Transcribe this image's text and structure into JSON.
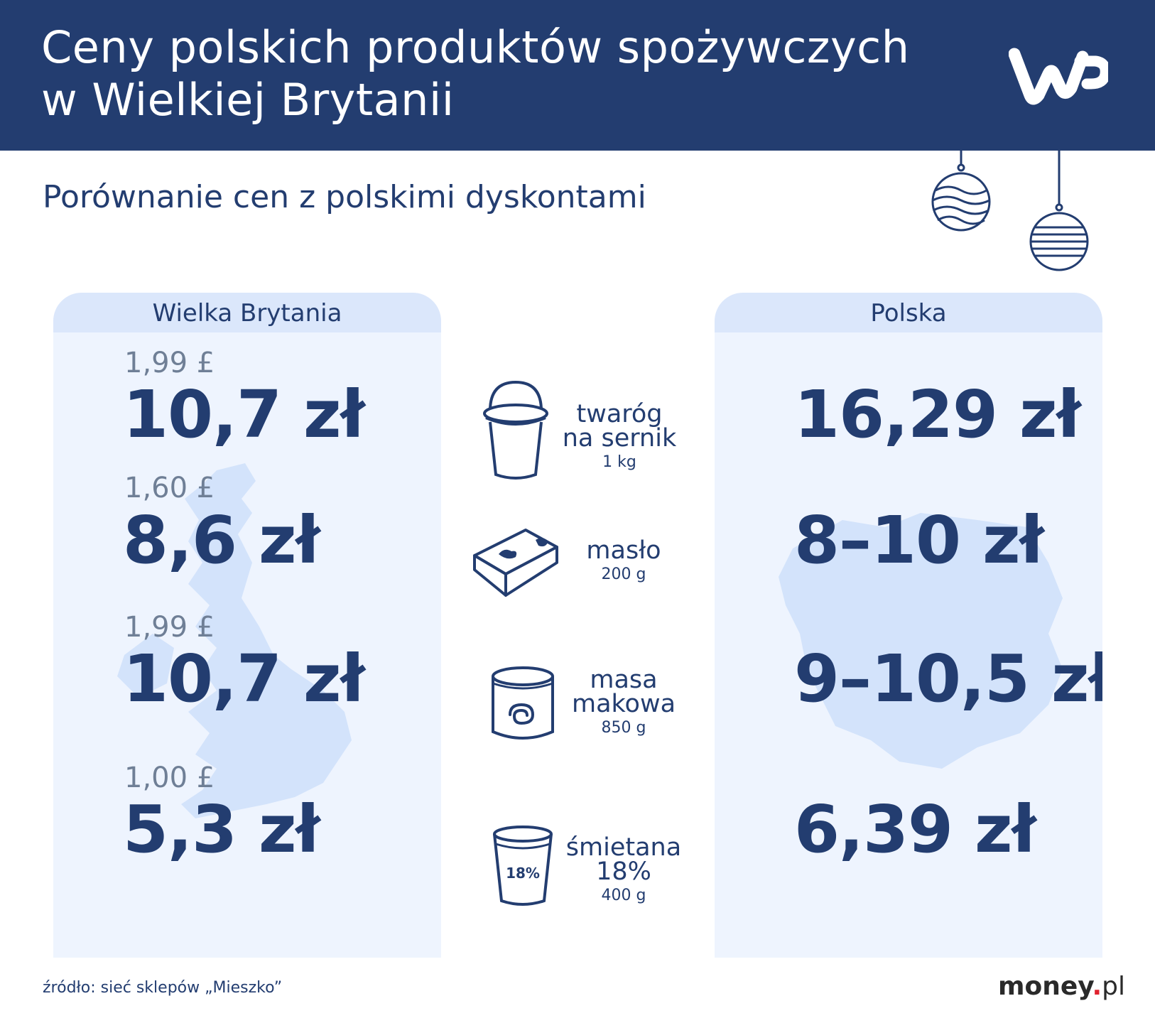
{
  "header": {
    "title_line1": "Ceny polskich produktów spożywczych",
    "title_line2": "w Wielkiej Brytanii"
  },
  "subtitle": "Porównanie cen z polskimi dyskontami",
  "columns": {
    "uk": "Wielka Brytania",
    "pl": "Polska"
  },
  "products": [
    {
      "name_line1": "twaróg",
      "name_line2": "na sernik",
      "quantity": "1 kg",
      "icon": "bucket-icon",
      "uk_gbp": "1,99 £",
      "uk_pln": "10,7 zł",
      "pl_pln": "16,29 zł"
    },
    {
      "name_line1": "masło",
      "name_line2": "",
      "quantity": "200 g",
      "icon": "butter-icon",
      "uk_gbp": "1,60 £",
      "uk_pln": "8,6 zł",
      "pl_pln": "8–10 zł"
    },
    {
      "name_line1": "masa",
      "name_line2": "makowa",
      "quantity": "850 g",
      "icon": "can-icon",
      "uk_gbp": "1,99 £",
      "uk_pln": "10,7 zł",
      "pl_pln": "9–10,5 zł"
    },
    {
      "name_line1": "śmietana",
      "name_line2": "18%",
      "quantity": "400 g",
      "icon": "cup-icon",
      "cup_label": "18%",
      "uk_gbp": "1,00 £",
      "uk_pln": "5,3 zł",
      "pl_pln": "6,39 zł"
    }
  ],
  "footer": {
    "source": "źródło: sieć sklepów „Mieszko”",
    "brand_name": "money",
    "brand_dot": ".",
    "brand_tld": "pl"
  },
  "colors": {
    "header_bg": "#233d70",
    "panel_bg": "#eef4fe",
    "panel_head_bg": "#dbe7fb",
    "map_fill": "#d3e3fb",
    "text_dark": "#233d70",
    "gbp_grey": "#6f7f96",
    "brand_red": "#e0222e"
  }
}
